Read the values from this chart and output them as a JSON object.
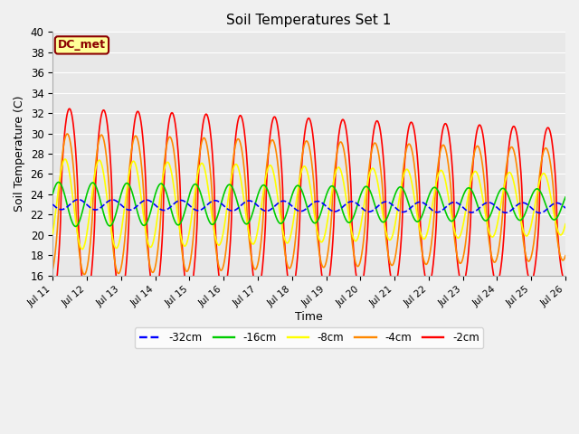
{
  "title": "Soil Temperatures Set 1",
  "xlabel": "Time",
  "ylabel": "Soil Temperature (C)",
  "ylim": [
    16,
    40
  ],
  "xlim": [
    0,
    360
  ],
  "annotation": "DC_met",
  "plot_bg_color": "#e8e8e8",
  "fig_bg_color": "#f0f0f0",
  "grid_color": "#ffffff",
  "tick_labels": [
    "Jul 11",
    "Jul 12",
    "Jul 13",
    "Jul 14",
    "Jul 15",
    "Jul 16",
    "Jul 17",
    "Jul 18",
    "Jul 19",
    "Jul 20",
    "Jul 21",
    "Jul 22",
    "Jul 23",
    "Jul 24",
    "Jul 25",
    "Jul 26"
  ],
  "tick_positions": [
    0,
    24,
    48,
    72,
    96,
    120,
    144,
    168,
    192,
    216,
    240,
    264,
    288,
    312,
    336,
    360
  ],
  "series": {
    "-32cm": {
      "color": "#0000ff",
      "linestyle": "--",
      "linewidth": 1.2
    },
    "-16cm": {
      "color": "#00cc00",
      "linestyle": "-",
      "linewidth": 1.2
    },
    "-8cm": {
      "color": "#ffff00",
      "linestyle": "-",
      "linewidth": 1.2
    },
    "-4cm": {
      "color": "#ff8800",
      "linestyle": "-",
      "linewidth": 1.2
    },
    "-2cm": {
      "color": "#ff0000",
      "linestyle": "-",
      "linewidth": 1.2
    }
  },
  "legend_order": [
    "-32cm",
    "-16cm",
    "-8cm",
    "-4cm",
    "-2cm"
  ],
  "base_temp": 23.0,
  "amp_2cm_start": 9.5,
  "amp_2cm_end": 7.5,
  "amp_4cm_start": 7.0,
  "amp_4cm_end": 5.5,
  "amp_8cm_start": 4.5,
  "amp_8cm_end": 3.0,
  "amp_16cm_start": 2.2,
  "amp_16cm_end": 1.5,
  "amp_32cm": 0.5,
  "phase_2cm": -1.5,
  "phase_4cm": -1.1,
  "phase_8cm": -0.7,
  "phase_16cm": 0.5,
  "phase_32cm": 3.14159
}
